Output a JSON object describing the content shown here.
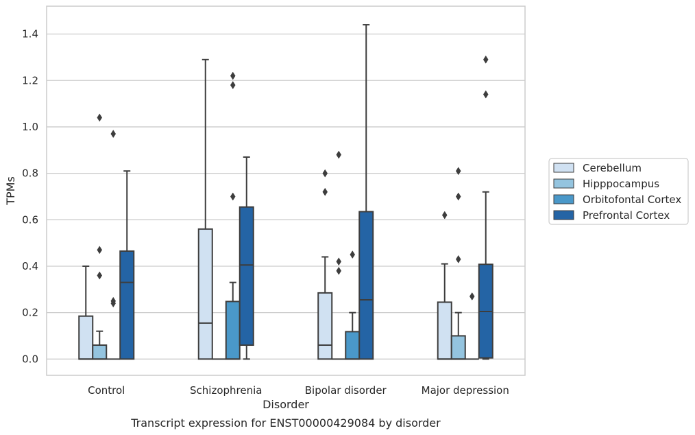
{
  "chart_data": {
    "type": "box",
    "title": "",
    "caption": "Transcript expression for ENST00000429084 by disorder",
    "xlabel": "Disorder",
    "ylabel": "TPMs",
    "ylim": [
      -0.07,
      1.52
    ],
    "yticks": [
      0.0,
      0.2,
      0.4,
      0.6,
      0.8,
      1.0,
      1.2,
      1.4
    ],
    "ytick_labels": [
      "0.0",
      "0.2",
      "0.4",
      "0.6",
      "0.8",
      "1.0",
      "1.2",
      "1.4"
    ],
    "grid": "horizontal",
    "legend_position": "right",
    "categories": [
      "Control",
      "Schizophrenia",
      "Bipolar disorder",
      "Major depression"
    ],
    "series": [
      {
        "name": "Cerebellum",
        "color": "#d0e1f2",
        "boxes": [
          {
            "whislo": 0.0,
            "q1": 0.0,
            "med": 0.0,
            "q3": 0.185,
            "whishi": 0.4,
            "fliers": []
          },
          {
            "whislo": 0.0,
            "q1": 0.0,
            "med": 0.155,
            "q3": 0.56,
            "whishi": 1.29,
            "fliers": []
          },
          {
            "whislo": 0.0,
            "q1": 0.0,
            "med": 0.06,
            "q3": 0.285,
            "whishi": 0.44,
            "fliers": [
              0.72,
              0.8
            ]
          },
          {
            "whislo": 0.0,
            "q1": 0.0,
            "med": 0.0,
            "q3": 0.245,
            "whishi": 0.41,
            "fliers": [
              0.62
            ]
          }
        ]
      },
      {
        "name": "Hipppocampus",
        "color": "#94c4df",
        "boxes": [
          {
            "whislo": 0.0,
            "q1": 0.0,
            "med": 0.0,
            "q3": 0.06,
            "whishi": 0.12,
            "fliers": [
              0.36,
              0.47,
              1.04
            ]
          },
          {
            "whislo": 0.0,
            "q1": 0.0,
            "med": 0.0,
            "q3": 0.0,
            "whishi": 0.0,
            "fliers": []
          },
          {
            "whislo": 0.0,
            "q1": 0.0,
            "med": 0.0,
            "q3": 0.0,
            "whishi": 0.0,
            "fliers": [
              0.38,
              0.42,
              0.88
            ]
          },
          {
            "whislo": 0.0,
            "q1": 0.0,
            "med": 0.0,
            "q3": 0.1,
            "whishi": 0.2,
            "fliers": [
              0.43,
              0.7,
              0.81
            ]
          }
        ]
      },
      {
        "name": "Orbitofontal Cortex",
        "color": "#4a98c9",
        "boxes": [
          {
            "whislo": 0.0,
            "q1": 0.0,
            "med": 0.0,
            "q3": 0.0,
            "whishi": 0.0,
            "fliers": [
              0.24,
              0.25,
              0.97
            ]
          },
          {
            "whislo": 0.0,
            "q1": 0.0,
            "med": 0.0,
            "q3": 0.248,
            "whishi": 0.33,
            "fliers": [
              0.7,
              1.18,
              1.22
            ]
          },
          {
            "whislo": 0.0,
            "q1": 0.0,
            "med": 0.0,
            "q3": 0.118,
            "whishi": 0.2,
            "fliers": [
              0.45
            ]
          },
          {
            "whislo": 0.0,
            "q1": 0.0,
            "med": 0.0,
            "q3": 0.0,
            "whishi": 0.0,
            "fliers": [
              0.27
            ]
          }
        ]
      },
      {
        "name": "Prefrontal Cortex",
        "color": "#2464a5",
        "boxes": [
          {
            "whislo": 0.0,
            "q1": 0.0,
            "med": 0.33,
            "q3": 0.465,
            "whishi": 0.81,
            "fliers": []
          },
          {
            "whislo": 0.0,
            "q1": 0.06,
            "med": 0.405,
            "q3": 0.655,
            "whishi": 0.87,
            "fliers": []
          },
          {
            "whislo": 0.0,
            "q1": 0.0,
            "med": 0.255,
            "q3": 0.635,
            "whishi": 1.44,
            "fliers": []
          },
          {
            "whislo": 0.0,
            "q1": 0.005,
            "med": 0.205,
            "q3": 0.408,
            "whishi": 0.72,
            "fliers": [
              1.14,
              1.29
            ]
          }
        ]
      }
    ]
  }
}
